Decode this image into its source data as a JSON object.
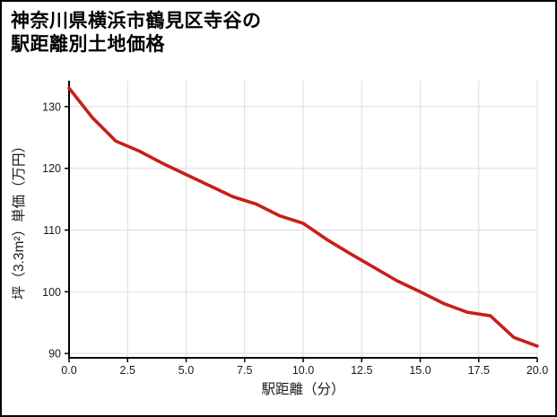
{
  "title": {
    "line1": "神奈川県横浜市鶴見区寺谷の",
    "line2": "駅距離別土地価格"
  },
  "chart_data": {
    "type": "line",
    "title": "神奈川県横浜市鶴見区寺谷の駅距離別土地価格",
    "xlabel": "駅距離（分）",
    "ylabel": "坪（3.3m²）単価（万円）",
    "x": [
      0,
      1,
      2,
      3,
      4,
      5,
      6,
      7,
      8,
      9,
      10,
      11,
      12,
      13,
      14,
      15,
      16,
      17,
      18,
      19,
      20
    ],
    "values": [
      133.0,
      128.2,
      124.4,
      122.8,
      120.8,
      119.0,
      117.2,
      115.4,
      114.2,
      112.3,
      111.1,
      108.5,
      106.2,
      104.0,
      101.8,
      100.0,
      98.1,
      96.7,
      96.1,
      92.6,
      91.2
    ],
    "xlim": [
      0,
      20
    ],
    "ylim": [
      89.3,
      134.2
    ],
    "xticks": {
      "values": [
        0,
        2.5,
        5,
        7.5,
        10,
        12.5,
        15,
        17.5,
        20
      ],
      "labels": [
        "0.0",
        "2.5",
        "5.0",
        "7.5",
        "10.0",
        "12.5",
        "15.0",
        "17.5",
        "20.0"
      ]
    },
    "yticks": {
      "values": [
        90,
        100,
        110,
        120,
        130
      ],
      "labels": [
        "90",
        "100",
        "110",
        "120",
        "130"
      ]
    },
    "grid": true,
    "legend": "none",
    "line_color": "#c81e17",
    "grid_color": "#dedede",
    "axis_color": "#000000",
    "tick_label_color": "#1a1a1a"
  }
}
